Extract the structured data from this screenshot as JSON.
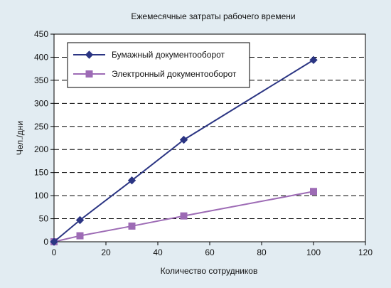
{
  "chart_data": {
    "type": "line",
    "title": "Ежемесячные затраты рабочего времени",
    "xlabel": "Количество сотрудников",
    "ylabel": "Чел./дни",
    "xlim": [
      0,
      120
    ],
    "ylim": [
      0,
      450
    ],
    "xticks": [
      "0",
      "20",
      "40",
      "60",
      "80",
      "100",
      "120"
    ],
    "yticks": [
      "0",
      "50",
      "100",
      "150",
      "200",
      "250",
      "300",
      "350",
      "400",
      "450"
    ],
    "grid": "horizontal dashed",
    "legend_position": "top-left",
    "series": [
      {
        "name": "Бумажный документооборот",
        "color": "#2b3583",
        "marker": "diamond",
        "x": [
          0,
          10,
          30,
          50,
          100
        ],
        "y": [
          0,
          47,
          133,
          221,
          394
        ]
      },
      {
        "name": "Электронный документооборот",
        "color": "#9d6bb5",
        "marker": "square",
        "x": [
          0,
          10,
          30,
          50,
          100
        ],
        "y": [
          0,
          13,
          34,
          56,
          109
        ]
      }
    ]
  }
}
